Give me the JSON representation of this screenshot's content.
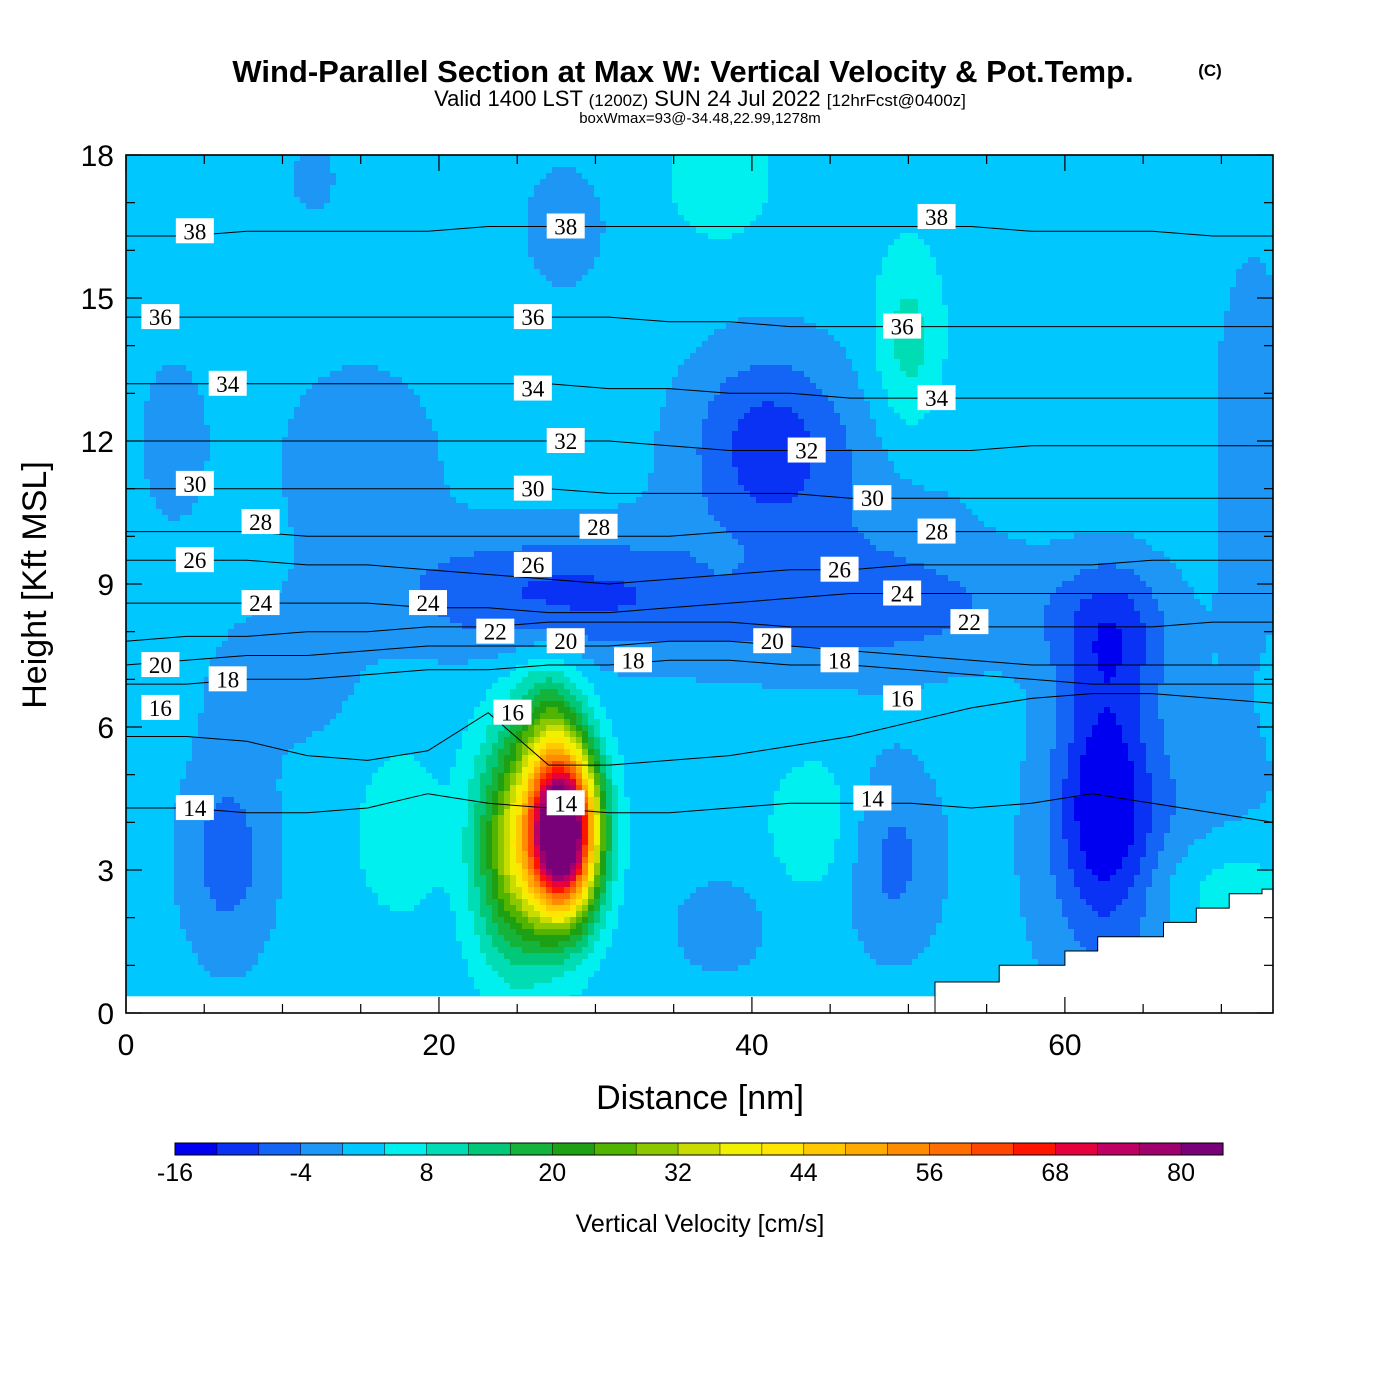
{
  "title": {
    "main": "Wind-Parallel Section at Max W: Vertical Velocity & Pot.Temp.",
    "copyright": "(C)",
    "valid_prefix": "Valid 1400 LST",
    "valid_utc": "(1200Z)",
    "valid_date": "SUN 24 Jul 2022",
    "forecast": "[12hrFcst@0400z]",
    "box_info": "boxWmax=93@-34.48,22.99,1278m"
  },
  "chart_data": {
    "type": "heatmap",
    "xlabel": "Distance [nm]",
    "ylabel": "Height [Kft MSL]",
    "xlim": [
      0,
      73.3
    ],
    "ylim": [
      0,
      18
    ],
    "x_ticks": [
      {
        "value": 0,
        "label": "0"
      },
      {
        "value": 20,
        "label": "20"
      },
      {
        "value": 40,
        "label": "40"
      },
      {
        "value": 60,
        "label": "60"
      }
    ],
    "y_ticks": [
      {
        "value": 0,
        "label": "0"
      },
      {
        "value": 3,
        "label": "3"
      },
      {
        "value": 6,
        "label": "6"
      },
      {
        "value": 9,
        "label": "9"
      },
      {
        "value": 12,
        "label": "12"
      },
      {
        "value": 15,
        "label": "15"
      },
      {
        "value": 18,
        "label": "18"
      }
    ],
    "colorbar": {
      "title": "Vertical Velocity [cm/s]",
      "levels": [
        -16,
        -12,
        -8,
        -4,
        0,
        4,
        8,
        12,
        16,
        20,
        24,
        28,
        32,
        36,
        40,
        44,
        48,
        52,
        56,
        60,
        64,
        68,
        72,
        76,
        80,
        84
      ],
      "colors": [
        "#0000f0",
        "#0a32f5",
        "#1464f5",
        "#1e96f5",
        "#00c8ff",
        "#00f0f0",
        "#00dcb4",
        "#00c878",
        "#14b43c",
        "#1ea014",
        "#50b400",
        "#8cc800",
        "#c8dc00",
        "#f0f000",
        "#ffe600",
        "#ffc800",
        "#ffaa00",
        "#ff8c00",
        "#ff6e00",
        "#ff4600",
        "#ff1400",
        "#e6003c",
        "#be0064",
        "#a0006e",
        "#780078"
      ],
      "tick_labels": [
        "-16",
        "-4",
        "8",
        "20",
        "32",
        "44",
        "56",
        "68",
        "80"
      ]
    },
    "background_velocity": 2,
    "velocity_blobs": [
      {
        "x": 28.0,
        "y": 3.8,
        "sx": 2.1,
        "sy": 1.7,
        "amp": 93
      },
      {
        "x": 25.0,
        "y": 3.5,
        "sx": 2.6,
        "sy": 2.3,
        "amp": 30
      },
      {
        "x": 27.0,
        "y": 6.0,
        "sx": 2.0,
        "sy": 1.5,
        "amp": 12
      },
      {
        "x": 6.5,
        "y": 3.3,
        "sx": 3.0,
        "sy": 2.2,
        "amp": -8
      },
      {
        "x": 62.5,
        "y": 4.5,
        "sx": 3.0,
        "sy": 2.6,
        "amp": -15
      },
      {
        "x": 63.0,
        "y": 8.0,
        "sx": 3.5,
        "sy": 1.5,
        "amp": -10
      },
      {
        "x": 66.0,
        "y": 3.0,
        "sx": 8.0,
        "sy": 3.5,
        "amp": -6
      },
      {
        "x": 41.0,
        "y": 12.0,
        "sx": 5.0,
        "sy": 2.0,
        "amp": -10
      },
      {
        "x": 27.0,
        "y": 8.8,
        "sx": 10.0,
        "sy": 1.3,
        "amp": -10
      },
      {
        "x": 49.0,
        "y": 3.2,
        "sx": 3.0,
        "sy": 2.0,
        "amp": -7
      },
      {
        "x": 38.0,
        "y": 1.8,
        "sx": 3.0,
        "sy": 1.0,
        "amp": -5
      },
      {
        "x": 47.0,
        "y": 8.5,
        "sx": 14.0,
        "sy": 1.2,
        "amp": -6
      },
      {
        "x": 15.0,
        "y": 11.5,
        "sx": 6.0,
        "sy": 2.5,
        "amp": -4
      },
      {
        "x": 45.0,
        "y": 10.0,
        "sx": 10.0,
        "sy": 3.0,
        "amp": -4
      },
      {
        "x": 10.0,
        "y": 7.0,
        "sx": 5.0,
        "sy": 1.5,
        "amp": -4
      },
      {
        "x": 17.5,
        "y": 3.8,
        "sx": 2.5,
        "sy": 1.6,
        "amp": 6
      },
      {
        "x": 44.0,
        "y": 4.0,
        "sx": 3.0,
        "sy": 1.5,
        "amp": 5
      },
      {
        "x": 50.0,
        "y": 14.0,
        "sx": 2.2,
        "sy": 2.0,
        "amp": 8
      },
      {
        "x": 38.0,
        "y": 17.5,
        "sx": 3.0,
        "sy": 1.2,
        "amp": 6
      },
      {
        "x": 38.5,
        "y": 9.4,
        "sx": 2.5,
        "sy": 0.8,
        "amp": 3
      },
      {
        "x": 70.0,
        "y": 2.5,
        "sx": 5.0,
        "sy": 1.3,
        "amp": 8
      },
      {
        "x": 72.0,
        "y": 12.0,
        "sx": 2.5,
        "sy": 4.0,
        "amp": -5
      },
      {
        "x": 3.0,
        "y": 12.0,
        "sx": 3.0,
        "sy": 2.5,
        "amp": -3
      },
      {
        "x": 28.0,
        "y": 16.5,
        "sx": 3.0,
        "sy": 1.5,
        "amp": -4
      },
      {
        "x": 12.0,
        "y": 17.5,
        "sx": 2.0,
        "sy": 1.0,
        "amp": -3
      }
    ],
    "theta_contours": [
      {
        "level": 14,
        "y": [
          4.3,
          4.3,
          4.2,
          4.2,
          4.3,
          4.6,
          4.4,
          4.3,
          4.2,
          4.2,
          4.3,
          4.4,
          4.4,
          4.4,
          4.3,
          4.4,
          4.6,
          4.4,
          4.2,
          4.0
        ]
      },
      {
        "level": 16,
        "y": [
          5.8,
          5.8,
          5.7,
          5.4,
          5.3,
          5.5,
          6.3,
          5.2,
          5.2,
          5.3,
          5.4,
          5.6,
          5.8,
          6.1,
          6.4,
          6.6,
          6.7,
          6.7,
          6.6,
          6.5
        ]
      },
      {
        "level": 18,
        "y": [
          6.9,
          6.9,
          7.0,
          7.0,
          7.1,
          7.2,
          7.2,
          7.3,
          7.3,
          7.4,
          7.4,
          7.3,
          7.3,
          7.2,
          7.1,
          7.0,
          6.9,
          6.9,
          6.9,
          6.9
        ]
      },
      {
        "level": 20,
        "y": [
          7.3,
          7.4,
          7.5,
          7.5,
          7.6,
          7.7,
          7.7,
          7.7,
          7.7,
          7.8,
          7.8,
          7.7,
          7.6,
          7.5,
          7.4,
          7.3,
          7.3,
          7.3,
          7.3,
          7.3
        ]
      },
      {
        "level": 22,
        "y": [
          7.8,
          7.9,
          7.9,
          8.0,
          8.0,
          8.1,
          8.1,
          8.2,
          8.2,
          8.2,
          8.2,
          8.1,
          8.1,
          8.1,
          8.1,
          8.1,
          8.1,
          8.1,
          8.2,
          8.2
        ]
      },
      {
        "level": 24,
        "y": [
          8.6,
          8.6,
          8.6,
          8.6,
          8.6,
          8.5,
          8.5,
          8.4,
          8.4,
          8.5,
          8.6,
          8.7,
          8.8,
          8.8,
          8.8,
          8.8,
          8.8,
          8.8,
          8.8,
          8.8
        ]
      },
      {
        "level": 26,
        "y": [
          9.5,
          9.5,
          9.5,
          9.4,
          9.4,
          9.3,
          9.2,
          9.1,
          9.0,
          9.1,
          9.2,
          9.3,
          9.3,
          9.4,
          9.4,
          9.4,
          9.4,
          9.5,
          9.5,
          9.5
        ]
      },
      {
        "level": 28,
        "y": [
          10.1,
          10.1,
          10.1,
          10.0,
          10.0,
          10.0,
          10.0,
          10.0,
          10.0,
          10.0,
          10.1,
          10.1,
          10.1,
          10.1,
          10.1,
          10.1,
          10.1,
          10.1,
          10.1,
          10.1
        ]
      },
      {
        "level": 30,
        "y": [
          11.0,
          11.0,
          11.0,
          11.0,
          11.0,
          11.0,
          11.0,
          11.0,
          10.9,
          10.9,
          10.9,
          10.9,
          10.8,
          10.8,
          10.8,
          10.8,
          10.8,
          10.8,
          10.8,
          10.8
        ]
      },
      {
        "level": 32,
        "y": [
          12.0,
          12.0,
          12.0,
          12.0,
          12.0,
          12.0,
          12.0,
          12.0,
          12.0,
          11.9,
          11.8,
          11.8,
          11.8,
          11.8,
          11.8,
          11.9,
          11.9,
          11.9,
          11.9,
          11.9
        ]
      },
      {
        "level": 34,
        "y": [
          13.2,
          13.2,
          13.2,
          13.2,
          13.2,
          13.2,
          13.2,
          13.2,
          13.1,
          13.1,
          13.0,
          13.0,
          12.9,
          12.9,
          12.9,
          12.9,
          12.9,
          12.9,
          12.9,
          12.9
        ]
      },
      {
        "level": 36,
        "y": [
          14.6,
          14.6,
          14.6,
          14.6,
          14.6,
          14.6,
          14.6,
          14.6,
          14.6,
          14.5,
          14.5,
          14.4,
          14.4,
          14.4,
          14.4,
          14.4,
          14.4,
          14.4,
          14.4,
          14.4
        ]
      },
      {
        "level": 38,
        "y": [
          16.3,
          16.3,
          16.4,
          16.4,
          16.4,
          16.4,
          16.5,
          16.5,
          16.5,
          16.5,
          16.5,
          16.5,
          16.5,
          16.5,
          16.5,
          16.4,
          16.4,
          16.4,
          16.3,
          16.3
        ]
      }
    ],
    "contour_labels": [
      {
        "text": "38",
        "x": 4.4,
        "y": 16.4
      },
      {
        "text": "38",
        "x": 28.1,
        "y": 16.5
      },
      {
        "text": "38",
        "x": 51.8,
        "y": 16.7
      },
      {
        "text": "36",
        "x": 2.2,
        "y": 14.6
      },
      {
        "text": "36",
        "x": 26.0,
        "y": 14.6
      },
      {
        "text": "36",
        "x": 49.6,
        "y": 14.4
      },
      {
        "text": "34",
        "x": 6.5,
        "y": 13.2
      },
      {
        "text": "34",
        "x": 26.0,
        "y": 13.1
      },
      {
        "text": "34",
        "x": 51.8,
        "y": 12.9
      },
      {
        "text": "32",
        "x": 28.1,
        "y": 12.0
      },
      {
        "text": "32",
        "x": 43.5,
        "y": 11.8
      },
      {
        "text": "30",
        "x": 4.4,
        "y": 11.1
      },
      {
        "text": "30",
        "x": 26.0,
        "y": 11.0
      },
      {
        "text": "30",
        "x": 47.7,
        "y": 10.8
      },
      {
        "text": "28",
        "x": 8.6,
        "y": 10.3
      },
      {
        "text": "28",
        "x": 30.2,
        "y": 10.2
      },
      {
        "text": "28",
        "x": 51.8,
        "y": 10.1
      },
      {
        "text": "26",
        "x": 4.4,
        "y": 9.5
      },
      {
        "text": "26",
        "x": 26.0,
        "y": 9.4
      },
      {
        "text": "26",
        "x": 45.6,
        "y": 9.3
      },
      {
        "text": "24",
        "x": 8.6,
        "y": 8.6
      },
      {
        "text": "24",
        "x": 19.3,
        "y": 8.6
      },
      {
        "text": "24",
        "x": 49.6,
        "y": 8.8
      },
      {
        "text": "22",
        "x": 23.6,
        "y": 8.0
      },
      {
        "text": "22",
        "x": 53.9,
        "y": 8.2
      },
      {
        "text": "20",
        "x": 2.2,
        "y": 7.3
      },
      {
        "text": "20",
        "x": 28.1,
        "y": 7.8
      },
      {
        "text": "20",
        "x": 41.3,
        "y": 7.8
      },
      {
        "text": "18",
        "x": 6.5,
        "y": 7.0
      },
      {
        "text": "18",
        "x": 32.4,
        "y": 7.4
      },
      {
        "text": "18",
        "x": 45.6,
        "y": 7.4
      },
      {
        "text": "16",
        "x": 2.2,
        "y": 6.4
      },
      {
        "text": "16",
        "x": 24.7,
        "y": 6.3
      },
      {
        "text": "16",
        "x": 49.6,
        "y": 6.6
      },
      {
        "text": "14",
        "x": 4.4,
        "y": 4.3
      },
      {
        "text": "14",
        "x": 28.1,
        "y": 4.4
      },
      {
        "text": "14",
        "x": 47.7,
        "y": 4.5
      }
    ],
    "terrain": {
      "base_height": 0.35,
      "points": [
        [
          51.7,
          0.35
        ],
        [
          51.7,
          0.65
        ],
        [
          55.8,
          0.65
        ],
        [
          55.8,
          1.0
        ],
        [
          60.0,
          1.0
        ],
        [
          60.0,
          1.3
        ],
        [
          62.1,
          1.3
        ],
        [
          62.1,
          1.6
        ],
        [
          64.2,
          1.6
        ],
        [
          64.2,
          1.6
        ],
        [
          66.3,
          1.6
        ],
        [
          66.3,
          1.9
        ],
        [
          68.4,
          1.9
        ],
        [
          68.4,
          2.2
        ],
        [
          70.5,
          2.2
        ],
        [
          70.5,
          2.5
        ],
        [
          72.6,
          2.5
        ],
        [
          72.6,
          2.6
        ],
        [
          73.3,
          2.6
        ]
      ]
    },
    "grid": false
  }
}
